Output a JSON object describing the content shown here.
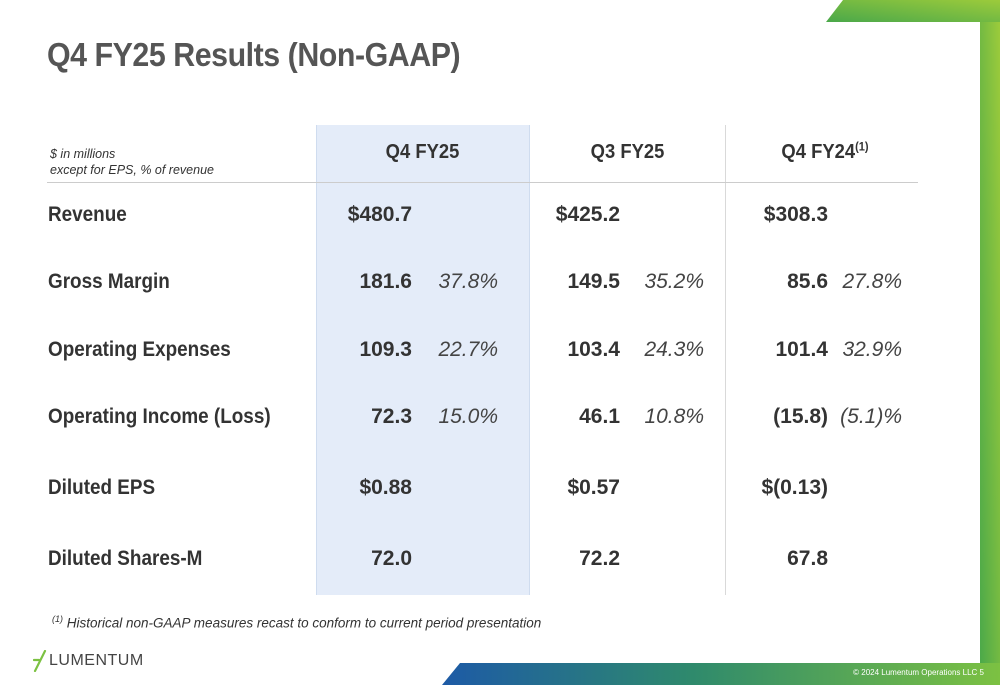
{
  "title": "Q4 FY25 Results (Non-GAAP)",
  "units_note": {
    "line1": "$ in millions",
    "line2": "except for EPS, % of revenue"
  },
  "columns": {
    "col1": "Q4 FY25",
    "col2": "Q3 FY25",
    "col3_main": "Q4 FY24",
    "col3_footnote_mark": "(1)"
  },
  "rows": [
    {
      "label": "Revenue",
      "c1": "$480.7",
      "p1": "",
      "c2": "$425.2",
      "p2": "",
      "c3": "$308.3",
      "p3": ""
    },
    {
      "label": "Gross Margin",
      "c1": "181.6",
      "p1": "37.8%",
      "c2": "149.5",
      "p2": "35.2%",
      "c3": "85.6",
      "p3": "27.8%"
    },
    {
      "label": "Operating Expenses",
      "c1": "109.3",
      "p1": "22.7%",
      "c2": "103.4",
      "p2": "24.3%",
      "c3": "101.4",
      "p3": "32.9%"
    },
    {
      "label": "Operating Income (Loss)",
      "c1": "72.3",
      "p1": "15.0%",
      "c2": "46.1",
      "p2": "10.8%",
      "c3": "(15.8)",
      "p3": "(5.1)%"
    },
    {
      "label": "Diluted EPS",
      "c1": "$0.88",
      "p1": "",
      "c2": "$0.57",
      "p2": "",
      "c3": "$(0.13)",
      "p3": ""
    },
    {
      "label": "Diluted Shares-M",
      "c1": "72.0",
      "p1": "",
      "c2": "72.2",
      "p2": "",
      "c3": "67.8",
      "p3": ""
    }
  ],
  "footnote": {
    "mark": "(1)",
    "text": "Historical non-GAAP measures recast to conform to current period presentation"
  },
  "logo_text": "LUMENTUM",
  "copyright": "© 2024 Lumentum Operations LLC   5",
  "colors": {
    "accent_green": "#6cb33f",
    "accent_blue": "#1f5fa8",
    "highlight": "#e4ecf9"
  }
}
